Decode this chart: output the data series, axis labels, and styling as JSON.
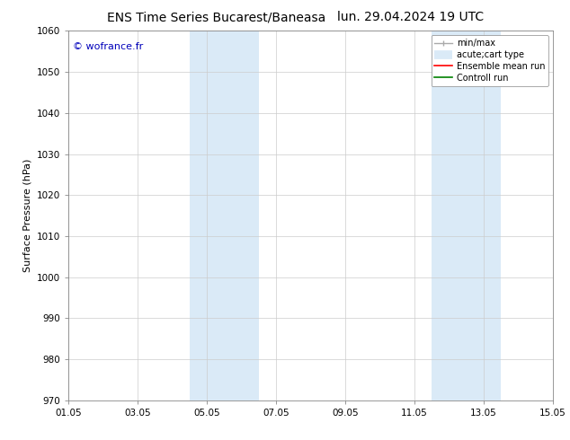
{
  "title_left": "ENS Time Series Bucarest/Baneasa",
  "title_right": "lun. 29.04.2024 19 UTC",
  "ylabel": "Surface Pressure (hPa)",
  "ylim": [
    970,
    1060
  ],
  "yticks": [
    970,
    980,
    990,
    1000,
    1010,
    1020,
    1030,
    1040,
    1050,
    1060
  ],
  "xlim_start": 0.0,
  "xlim_end": 14.0,
  "xtick_positions": [
    0,
    2,
    4,
    6,
    8,
    10,
    12,
    14
  ],
  "xtick_labels": [
    "01.05",
    "03.05",
    "05.05",
    "07.05",
    "09.05",
    "11.05",
    "13.05",
    "15.05"
  ],
  "shaded_bands": [
    {
      "xmin": 3.5,
      "xmax": 5.5
    },
    {
      "xmin": 10.5,
      "xmax": 12.5
    }
  ],
  "band_color": "#daeaf7",
  "watermark_text": "© wofrance.fr",
  "watermark_color": "#0000bb",
  "legend_entries": [
    {
      "label": "min/max"
    },
    {
      "label": "acute;cart type"
    },
    {
      "label": "Ensemble mean run"
    },
    {
      "label": "Controll run"
    }
  ],
  "legend_colors": [
    "#aaaaaa",
    "#daeaf7",
    "#ff0000",
    "#008000"
  ],
  "bg_color": "#ffffff",
  "grid_color": "#cccccc",
  "title_fontsize": 10,
  "label_fontsize": 8,
  "tick_fontsize": 7.5,
  "legend_fontsize": 7,
  "watermark_fontsize": 8
}
